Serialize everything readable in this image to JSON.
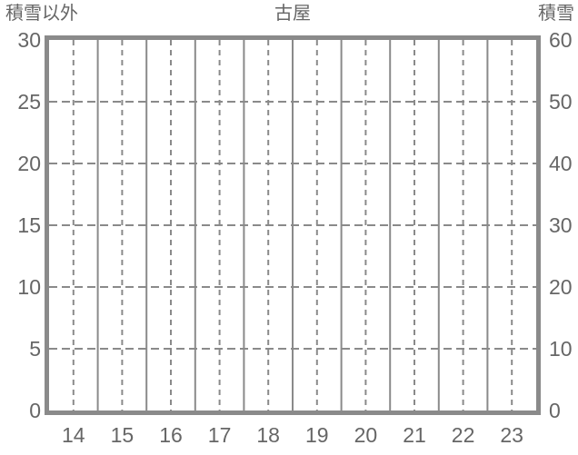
{
  "chart_data": {
    "type": "line",
    "title": "古屋",
    "series": [],
    "x_axis": {
      "categories": [
        "14",
        "15",
        "16",
        "17",
        "18",
        "19",
        "20",
        "21",
        "22",
        "23"
      ]
    },
    "left_axis": {
      "title": "積雪以外",
      "min": 0,
      "max": 30,
      "tick_step": 5,
      "ticks": [
        0,
        5,
        10,
        15,
        20,
        25,
        30
      ]
    },
    "right_axis": {
      "title": "積雪",
      "min": 0,
      "max": 60,
      "tick_step": 10,
      "ticks": [
        0,
        10,
        20,
        30,
        40,
        50,
        60
      ]
    },
    "layout_hints": {
      "grid_vertical_solid": "category boundaries",
      "grid_vertical_dashed": "category centers",
      "grid_horizontal_dashed": "inner left-axis ticks",
      "plot_empty": true
    },
    "colors": {
      "line": "#8a8a8a",
      "text": "#666666",
      "background": "#ffffff"
    }
  }
}
